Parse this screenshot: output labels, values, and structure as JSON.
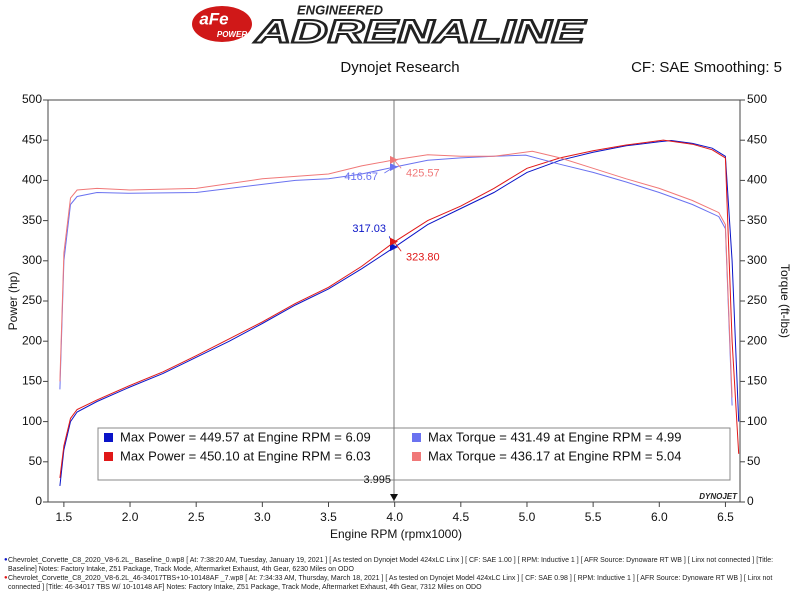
{
  "chart_data": {
    "type": "line",
    "brand": {
      "logo": "aFe",
      "logo_sub": "POWER",
      "tagline": "ENGINEERED",
      "name": "ADRENALINE"
    },
    "title": "Dynojet Research",
    "subtitle": "CF: SAE Smoothing: 5",
    "x_label": "Engine RPM (rpmx1000)",
    "y_label": "Power (hp)",
    "y2_label": "Torque (ft-lbs)",
    "watermark": "DYNOJET",
    "xlim": [
      1.38,
      6.61
    ],
    "xticks": [
      {
        "value": 1.5,
        "label": "1.5"
      },
      {
        "value": 2,
        "label": "2.0"
      },
      {
        "value": 2.5,
        "label": "2.5"
      },
      {
        "value": 3,
        "label": "3.0"
      },
      {
        "value": 3.5,
        "label": "3.5"
      },
      {
        "value": 4,
        "label": "4.0"
      },
      {
        "value": 4.5,
        "label": "4.5"
      },
      {
        "value": 5,
        "label": "5.0"
      },
      {
        "value": 5.5,
        "label": "5.5"
      },
      {
        "value": 6,
        "label": "6.0"
      },
      {
        "value": 6.5,
        "label": "6.5"
      }
    ],
    "ylim": [
      0,
      500
    ],
    "yticks": [
      0,
      50,
      100,
      150,
      200,
      250,
      300,
      350,
      400,
      450,
      500
    ],
    "y2lim": [
      0,
      500
    ],
    "y2ticks": [
      0,
      50,
      100,
      150,
      200,
      250,
      300,
      350,
      400,
      450,
      500
    ],
    "series": [
      {
        "name": "Max Power = 449.57 at Engine RPM = 6.09",
        "color": "#0a14c8",
        "x": [
          1.47,
          1.5,
          1.55,
          1.6,
          1.75,
          2.0,
          2.25,
          2.5,
          2.75,
          3.0,
          3.25,
          3.5,
          3.75,
          4.0,
          4.25,
          4.5,
          4.75,
          5.0,
          5.25,
          5.5,
          5.75,
          6.0,
          6.09,
          6.25,
          6.4,
          6.5,
          6.55,
          6.6
        ],
        "values": [
          20,
          65,
          100,
          112,
          125,
          143,
          160,
          180,
          200,
          222,
          245,
          265,
          290,
          317,
          345,
          365,
          385,
          410,
          425,
          435,
          443,
          448,
          449.57,
          446,
          440,
          430,
          300,
          100
        ]
      },
      {
        "name": "Max Power = 450.10 at Engine RPM = 6.03",
        "color": "#e01818",
        "x": [
          1.47,
          1.5,
          1.55,
          1.6,
          1.75,
          2.0,
          2.25,
          2.5,
          2.75,
          3.0,
          3.25,
          3.5,
          3.75,
          4.0,
          4.25,
          4.5,
          4.75,
          5.0,
          5.25,
          5.5,
          5.75,
          6.03,
          6.25,
          6.4,
          6.5,
          6.55,
          6.6
        ],
        "values": [
          30,
          70,
          104,
          115,
          127,
          145,
          162,
          182,
          203,
          224,
          247,
          267,
          293,
          323.8,
          350,
          368,
          390,
          415,
          428,
          437,
          444,
          450.1,
          445,
          438,
          428,
          200,
          60
        ]
      },
      {
        "name": "Max Torque = 431.49 at Engine RPM = 4.99",
        "color": "#6a72f0",
        "axis": "y2",
        "x": [
          1.47,
          1.5,
          1.55,
          1.6,
          1.75,
          2.0,
          2.5,
          3.0,
          3.25,
          3.5,
          3.75,
          4.0,
          4.25,
          4.5,
          4.75,
          4.99,
          5.25,
          5.5,
          5.75,
          6.0,
          6.25,
          6.45,
          6.5,
          6.55
        ],
        "values": [
          140,
          300,
          370,
          380,
          385,
          384,
          385,
          395,
          400,
          402,
          408,
          416.67,
          425,
          428,
          430,
          431.49,
          420,
          410,
          398,
          385,
          370,
          355,
          340,
          120
        ]
      },
      {
        "name": "Max Torque = 436.17 at Engine RPM = 5.04",
        "color": "#f07878",
        "axis": "y2",
        "x": [
          1.47,
          1.5,
          1.55,
          1.6,
          1.75,
          2.0,
          2.5,
          3.0,
          3.25,
          3.5,
          3.75,
          4.0,
          4.25,
          4.5,
          4.75,
          5.04,
          5.25,
          5.5,
          5.75,
          6.0,
          6.25,
          6.45,
          6.5,
          6.55
        ],
        "values": [
          150,
          310,
          378,
          388,
          390,
          388,
          390,
          402,
          405,
          408,
          418,
          425.57,
          432,
          430,
          430,
          436.17,
          428,
          415,
          402,
          390,
          375,
          360,
          345,
          130
        ]
      }
    ],
    "cursor": {
      "x": 3.995,
      "values": [
        317.03,
        323.8,
        416.67,
        425.57
      ],
      "value_labels": [
        "317.03",
        "323.80",
        "416.67",
        "425.57"
      ]
    },
    "footer": [
      "Chevrolet_Corvette_C8_2020_V8-6.2L_ Baseline_0.wp8 [ At: 7:38:20 AM, Tuesday, January 19, 2021 ] [ As tested on Dynojet Model 424xLC Linx ] [ CF: SAE 1.00 ] [ RPM: Inductive 1 ] [ AFR Source: Dynoware RT WB ] [ Linx not connected ] [Title: Baseline]  Notes: Factory Intake, Z51 Package, Track Mode, Aftermarket Exhaust, 4th Gear, 6230 Miles on ODO",
      "Chevrolet_Corvette_C8_2020_V8-6.2L_46-34017TBS+10-10148AF _7.wp8 [ At: 7:34:33 AM, Thursday, March 18, 2021 ] [ As tested on Dynojet Model 424xLC Linx ] [ CF: SAE 0.98 ] [ RPM: Inductive 1 ] [ AFR Source: Dynoware RT WB ] [ Linx not connected ] [Title: 46-34017 TBS W/ 10-10148 AF]  Notes: Factory Intake, Z51 Package, Track Mode, Aftermarket Exhaust, 4th Gear, 7312 Miles on ODO"
    ]
  }
}
